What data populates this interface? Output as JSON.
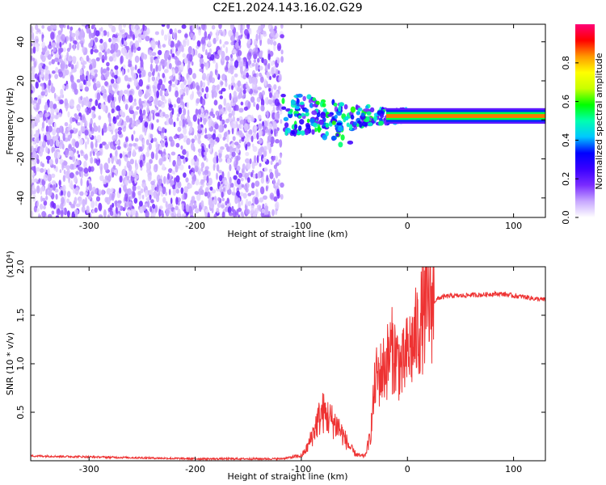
{
  "title": "C2E1.2024.143.16.02.G29",
  "chart_data": [
    {
      "type": "heatmap",
      "xlabel": "Height of straight line (km)",
      "ylabel": "Frequency (Hz)",
      "xlim": [
        -355,
        130
      ],
      "ylim": [
        -50,
        49
      ],
      "xticks": [
        -300,
        -200,
        -100,
        0,
        100
      ],
      "yticks": [
        -40,
        -20,
        0,
        20,
        40
      ],
      "colorbar": {
        "label": "Normalized spectral amplitude",
        "range": [
          0,
          1
        ],
        "ticks": [
          0.0,
          0.2,
          0.4,
          0.6,
          0.8
        ],
        "colors": [
          "#ffffff",
          "#c8a8ff",
          "#7a2cff",
          "#3a00ff",
          "#0000ff",
          "#00c8ff",
          "#00ffb0",
          "#00ff00",
          "#c8ff00",
          "#ffff00",
          "#ff9900",
          "#ff0000",
          "#ff0077"
        ]
      },
      "regions": [
        {
          "name": "noise",
          "x_range": [
            -355,
            -118
          ],
          "freq_range": [
            -50,
            49
          ],
          "amplitude": 0.15
        },
        {
          "name": "signal",
          "x_range": [
            -118,
            130
          ],
          "center_freq": 2,
          "amplitude": 0.85
        }
      ]
    },
    {
      "type": "line",
      "xlabel": "Height of straight line (km)",
      "ylabel": "SNR (10 * v/v)",
      "scale_label": "(x10⁴)",
      "xlim": [
        -355,
        130
      ],
      "ylim": [
        0,
        2.0
      ],
      "xticks": [
        -300,
        -200,
        -100,
        0,
        100
      ],
      "yticks": [
        0.5,
        1.0,
        1.5,
        2.0
      ],
      "color": "#ee3333",
      "series": [
        {
          "x": [
            -355,
            -300,
            -250,
            -200,
            -150,
            -120,
            -100,
            -95,
            -90,
            -85,
            -80,
            -75,
            -70,
            -65,
            -60,
            -55,
            -50,
            -45,
            -40,
            -35,
            -30,
            -25,
            -20,
            -15,
            -10,
            -5,
            0,
            5,
            10,
            15,
            20,
            30,
            40,
            50,
            60,
            70,
            80,
            90,
            100,
            110,
            120,
            130
          ],
          "y": [
            0.05,
            0.04,
            0.03,
            0.02,
            0.02,
            0.02,
            0.05,
            0.12,
            0.25,
            0.4,
            0.5,
            0.45,
            0.4,
            0.35,
            0.25,
            0.15,
            0.08,
            0.05,
            0.05,
            0.25,
            0.85,
            0.9,
            1.0,
            1.15,
            1.05,
            0.95,
            1.1,
            1.2,
            1.35,
            1.5,
            1.6,
            1.68,
            1.7,
            1.7,
            1.71,
            1.71,
            1.72,
            1.72,
            1.7,
            1.69,
            1.67,
            1.66
          ]
        }
      ]
    }
  ]
}
